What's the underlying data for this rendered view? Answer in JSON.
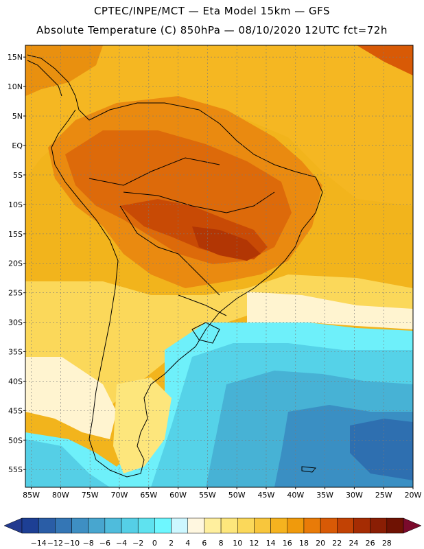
{
  "header": {
    "line1": "CPTEC/INPE/MCT —  Eta Model 15km — GFS",
    "line2": "Absolute Temperature (C) 850hPa — 08/10/2020 12UTC fct=72h"
  },
  "map": {
    "variable": "Absolute Temperature (C)",
    "level": "850hPa",
    "model": "Eta Model 15km - GFS",
    "run": "08/10/2020 12UTC",
    "forecast": "fct=72h",
    "lon_range": [
      -86,
      -20
    ],
    "lat_range": [
      -58,
      17
    ],
    "lat_labels": [
      "15N",
      "10N",
      "5N",
      "EQ",
      "5S",
      "10S",
      "15S",
      "20S",
      "25S",
      "30S",
      "35S",
      "40S",
      "45S",
      "50S",
      "55S"
    ],
    "lat_values": [
      15,
      10,
      5,
      0,
      -5,
      -10,
      -15,
      -20,
      -25,
      -30,
      -35,
      -40,
      -45,
      -50,
      -55
    ],
    "lon_labels": [
      "85W",
      "80W",
      "75W",
      "70W",
      "65W",
      "60W",
      "55W",
      "50W",
      "45W",
      "40W",
      "35W",
      "30W",
      "25W",
      "20W"
    ],
    "lon_values": [
      -85,
      -80,
      -75,
      -70,
      -65,
      -60,
      -55,
      -50,
      -45,
      -40,
      -35,
      -30,
      -25,
      -20
    ]
  },
  "colorbar": {
    "labels": [
      "-14",
      "-12",
      "-10",
      "-8",
      "-6",
      "-4",
      "-2",
      "0",
      "2",
      "4",
      "6",
      "8",
      "10",
      "12",
      "14",
      "16",
      "18",
      "20",
      "22",
      "24",
      "26",
      "28"
    ],
    "colors": [
      "#1d3f94",
      "#2a5da6",
      "#3476b5",
      "#3e8fc3",
      "#48a6cf",
      "#4fbcdc",
      "#55cfe6",
      "#5fe2ef",
      "#6ef7ff",
      "#cdf7ff",
      "#fff7e0",
      "#ffef9e",
      "#fde67c",
      "#fbd85a",
      "#f8c63c",
      "#f5b31f",
      "#f09a0c",
      "#e97b08",
      "#d85a06",
      "#c24204",
      "#a52c03",
      "#8a1e04",
      "#6f1203"
    ],
    "low_arrow": "#233a8f",
    "high_arrow": "#7a0a2c"
  }
}
